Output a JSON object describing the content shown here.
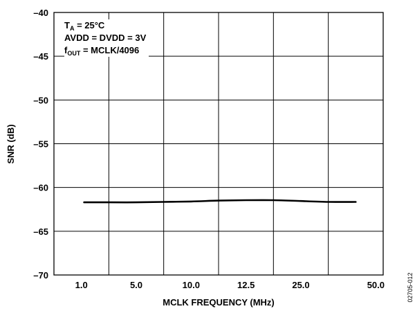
{
  "chart_data": {
    "type": "line",
    "categories": [
      "1.0",
      "5.0",
      "10.0",
      "12.5",
      "25.0",
      "50.0"
    ],
    "series": [
      {
        "x": [
          0.05,
          0.5,
          1,
          1.5,
          2,
          2.5,
          3,
          3.5,
          4,
          4.5,
          5
        ],
        "values": [
          -61.7,
          -61.7,
          -61.7,
          -61.65,
          -61.6,
          -61.5,
          -61.45,
          -61.45,
          -61.55,
          -61.65,
          -61.65
        ]
      }
    ],
    "xlabel": "MCLK FREQUENCY (MHz)",
    "ylabel": "SNR (dB)",
    "ylim": [
      -70,
      -40
    ],
    "yticks": [
      -40,
      -45,
      -50,
      -55,
      -60,
      -65,
      -70
    ],
    "ytick_labels": [
      "–40",
      "–45",
      "–50",
      "–55",
      "–60",
      "–65",
      "–70"
    ],
    "grid": true,
    "annotations": {
      "ta_prefix": "T",
      "ta_sub": "A",
      "ta_value": " = 25°C",
      "supply": "AVDD = DVDD = 3V",
      "fout_prefix": "f",
      "fout_sub": "OUT",
      "fout_value": " = MCLK/4096"
    },
    "figure_id": "02705-012",
    "line_color": "#000000"
  }
}
